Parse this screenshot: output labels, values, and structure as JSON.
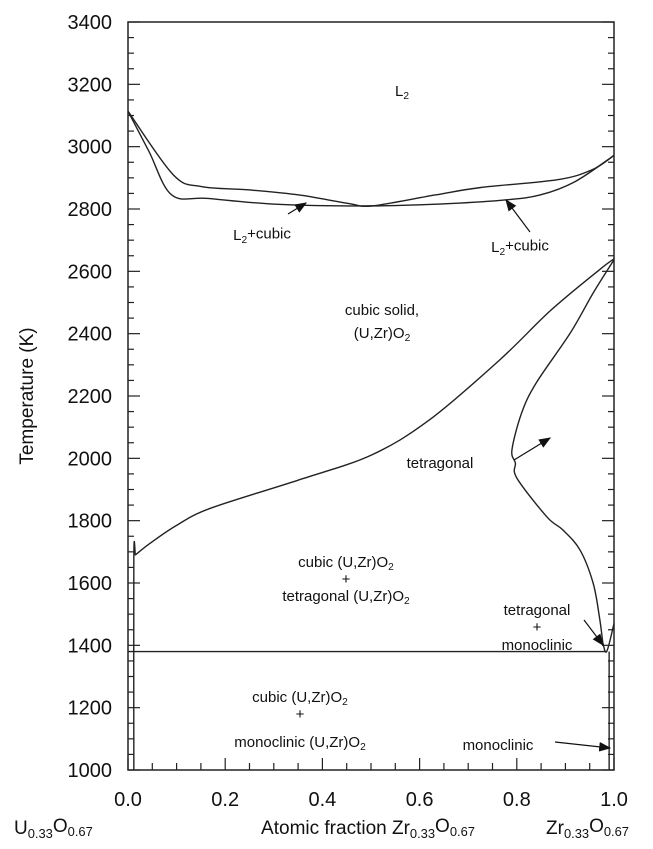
{
  "chart_data": {
    "type": "line",
    "title": "",
    "xlabel": [
      {
        "t": "Atomic fraction Zr"
      },
      {
        "sub": "0.33"
      },
      {
        "t": "O"
      },
      {
        "sub": "0.67"
      }
    ],
    "ylabel": "Temperature (K)",
    "xlim": [
      0,
      1
    ],
    "ylim": [
      1000,
      3400
    ],
    "xticks": [
      "0.0",
      "0.2",
      "0.4",
      "0.6",
      "0.8",
      "1.0"
    ],
    "yticks": [
      "1000",
      "1200",
      "1400",
      "1600",
      "1800",
      "2000",
      "2200",
      "2400",
      "2600",
      "2800",
      "3000",
      "3200",
      "3400"
    ],
    "x_end_labels": {
      "left": [
        {
          "t": "U"
        },
        {
          "sub": "0.33"
        },
        {
          "t": "O"
        },
        {
          "sub": "0.67"
        }
      ],
      "right": [
        {
          "t": "Zr"
        },
        {
          "sub": "0.33"
        },
        {
          "t": "O"
        },
        {
          "sub": "0.67"
        }
      ]
    },
    "grid": false,
    "series": [
      {
        "name": "liquidus",
        "x": [
          0,
          0.093,
          0.151,
          0.251,
          0.352,
          0.453,
          0.503,
          0.632,
          0.726,
          0.884,
          0.955,
          1.0
        ],
        "y": [
          3114,
          2910,
          2872,
          2861,
          2845,
          2818,
          2810,
          2845,
          2869,
          2894,
          2926,
          2972
        ]
      },
      {
        "name": "solidus",
        "x": [
          0,
          0.043,
          0.09,
          0.165,
          0.309,
          0.503,
          0.668,
          0.776,
          0.848,
          0.92,
          1.0
        ],
        "y": [
          3114,
          2985,
          2845,
          2834,
          2815,
          2810,
          2818,
          2829,
          2845,
          2888,
          2972
        ]
      },
      {
        "name": "cubic-tetragonal boundary (cubic side)",
        "x": [
          0.015,
          0.045,
          0.1,
          0.17,
          0.35,
          0.5,
          0.62,
          0.765,
          0.87,
          0.97,
          1.0
        ],
        "y": [
          1690,
          1727,
          1785,
          1840,
          1930,
          2010,
          2123,
          2316,
          2475,
          2605,
          2640
        ]
      },
      {
        "name": "cubic-tetragonal boundary (tetragonal side)",
        "x": [
          1.0,
          0.957,
          0.91,
          0.84,
          0.81,
          0.79,
          0.797,
          0.8,
          0.862,
          0.895,
          0.93,
          0.957,
          0.97,
          0.977
        ],
        "y": [
          2637,
          2530,
          2402,
          2242,
          2146,
          2027,
          1985,
          1937,
          1812,
          1770,
          1706,
          1600,
          1491,
          1408
        ]
      },
      {
        "name": "eutectoid",
        "x": [
          0,
          0.985
        ],
        "y": [
          1380,
          1380
        ]
      },
      {
        "name": "cubic solvus low",
        "x": [
          0.012,
          0.012,
          0.015
        ],
        "y": [
          1000,
          1680,
          1690
        ]
      },
      {
        "name": "tetragonal-monoclinic",
        "x": [
          0.977,
          0.985,
          1.0
        ],
        "y": [
          1408,
          1380,
          1470
        ]
      },
      {
        "name": "monoclinic boundary",
        "x": [
          0.99,
          0.99
        ],
        "y": [
          1000,
          1380
        ]
      }
    ],
    "annotations": [
      {
        "id": "l2",
        "text": [
          {
            "t": "L"
          },
          {
            "sub": "2"
          }
        ]
      },
      {
        "id": "l2cubic-left",
        "text": [
          {
            "t": "L"
          },
          {
            "sub": "2"
          },
          {
            "t": "+cubic"
          }
        ]
      },
      {
        "id": "l2cubic-right",
        "text": [
          {
            "t": "L"
          },
          {
            "sub": "2"
          },
          {
            "t": "+cubic"
          }
        ]
      },
      {
        "id": "cubic-solid-1",
        "text": [
          {
            "t": "cubic solid,"
          }
        ]
      },
      {
        "id": "cubic-solid-2",
        "text": [
          {
            "t": "(U,Zr)O"
          },
          {
            "sub": "2"
          }
        ]
      },
      {
        "id": "tetragonal",
        "text": [
          {
            "t": "tetragonal"
          }
        ]
      },
      {
        "id": "ct-1",
        "text": [
          {
            "t": "cubic (U,Zr)O"
          },
          {
            "sub": "2"
          }
        ]
      },
      {
        "id": "ct-2",
        "text": [
          {
            "t": "+"
          }
        ]
      },
      {
        "id": "ct-3",
        "text": [
          {
            "t": "tetragonal (U,Zr)O"
          },
          {
            "sub": "2"
          }
        ]
      },
      {
        "id": "tm-1",
        "text": [
          {
            "t": "tetragonal"
          }
        ]
      },
      {
        "id": "tm-2",
        "text": [
          {
            "t": "+"
          }
        ]
      },
      {
        "id": "tm-3",
        "text": [
          {
            "t": "monoclinic"
          }
        ]
      },
      {
        "id": "cm-1",
        "text": [
          {
            "t": "cubic (U,Zr)O"
          },
          {
            "sub": "2"
          }
        ]
      },
      {
        "id": "cm-2",
        "text": [
          {
            "t": "+"
          }
        ]
      },
      {
        "id": "cm-3",
        "text": [
          {
            "t": "monoclinic (U,Zr)O"
          },
          {
            "sub": "2"
          }
        ]
      },
      {
        "id": "monoclinic",
        "text": [
          {
            "t": "monoclinic"
          }
        ]
      }
    ]
  }
}
